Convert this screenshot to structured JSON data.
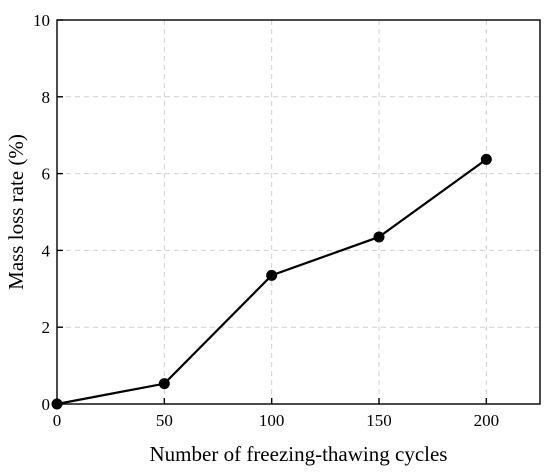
{
  "chart_data": {
    "type": "line",
    "title": "",
    "xlabel": "Number of freezing-thawing cycles",
    "ylabel": "Mass loss rate (%)",
    "xlim": [
      0,
      225
    ],
    "ylim": [
      0,
      10
    ],
    "xticks": [
      0,
      50,
      100,
      150,
      200
    ],
    "yticks": [
      0,
      2,
      4,
      6,
      8,
      10
    ],
    "grid": true,
    "legend": "none",
    "series": [
      {
        "x": [
          0,
          50,
          100,
          150,
          200
        ],
        "y": [
          0,
          0.53,
          3.35,
          4.35,
          6.37
        ],
        "color": "#000000",
        "marker": "circle"
      }
    ]
  }
}
